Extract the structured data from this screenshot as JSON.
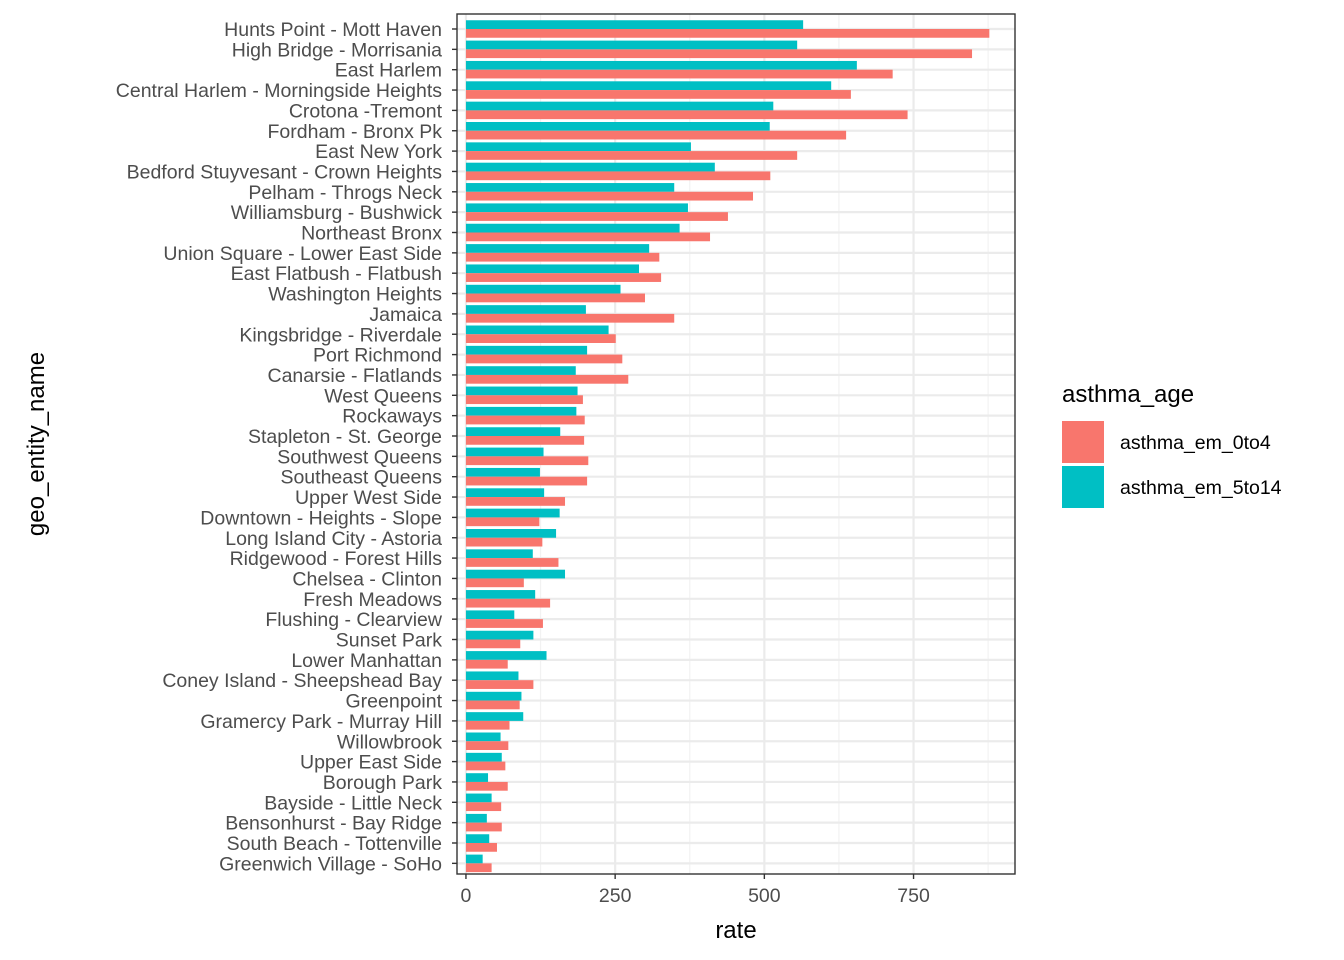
{
  "chart_data": {
    "type": "bar",
    "orientation": "horizontal",
    "xlabel": "rate",
    "ylabel": "geo_entity_name",
    "xlim": [
      -15,
      920
    ],
    "xticks": [
      0,
      250,
      500,
      750
    ],
    "grid": true,
    "legend_position": "right",
    "legend_title": "asthma_age",
    "categories": [
      "Hunts Point - Mott Haven",
      "High Bridge - Morrisania",
      "East Harlem",
      "Central Harlem - Morningside Heights",
      "Crotona -Tremont",
      "Fordham - Bronx Pk",
      "East New York",
      "Bedford Stuyvesant - Crown Heights",
      "Pelham - Throgs Neck",
      "Williamsburg - Bushwick",
      "Northeast Bronx",
      "Union Square - Lower East Side",
      "East Flatbush - Flatbush",
      "Washington Heights",
      "Jamaica",
      "Kingsbridge - Riverdale",
      "Port Richmond",
      "Canarsie - Flatlands",
      "West Queens",
      "Rockaways",
      "Stapleton - St. George",
      "Southwest Queens",
      "Southeast Queens",
      "Upper West Side",
      "Downtown - Heights - Slope",
      "Long Island City - Astoria",
      "Ridgewood - Forest Hills",
      "Chelsea - Clinton",
      "Fresh Meadows",
      "Flushing - Clearview",
      "Sunset Park",
      "Lower Manhattan",
      "Coney Island - Sheepshead Bay",
      "Greenpoint",
      "Gramercy Park - Murray Hill",
      "Willowbrook",
      "Upper East Side",
      "Borough Park",
      "Bayside - Little Neck",
      "Bensonhurst - Bay Ridge",
      "South Beach - Tottenville",
      "Greenwich Village - SoHo"
    ],
    "series": [
      {
        "name": "asthma_em_0to4",
        "color": "#F8766D",
        "values": [
          877,
          848,
          715,
          645,
          740,
          637,
          555,
          510,
          481,
          439,
          409,
          324,
          327,
          300,
          349,
          251,
          262,
          272,
          196,
          199,
          198,
          205,
          203,
          166,
          123,
          128,
          155,
          97,
          141,
          129,
          91,
          70,
          113,
          90,
          73,
          71,
          66,
          70,
          59,
          60,
          52,
          43
        ]
      },
      {
        "name": "asthma_em_5to14",
        "color": "#00BFC4",
        "values": [
          565,
          555,
          655,
          612,
          515,
          509,
          377,
          417,
          349,
          372,
          358,
          307,
          290,
          259,
          201,
          239,
          203,
          184,
          187,
          185,
          158,
          130,
          124,
          131,
          157,
          151,
          112,
          166,
          116,
          81,
          113,
          135,
          88,
          93,
          96,
          58,
          60,
          37,
          43,
          35,
          39,
          28
        ]
      }
    ]
  },
  "colors": {
    "panel_border": "#333333",
    "grid_major": "#EBEBEB",
    "grid_minor": "#F2F2F2",
    "tick_text": "#4D4D4D"
  }
}
